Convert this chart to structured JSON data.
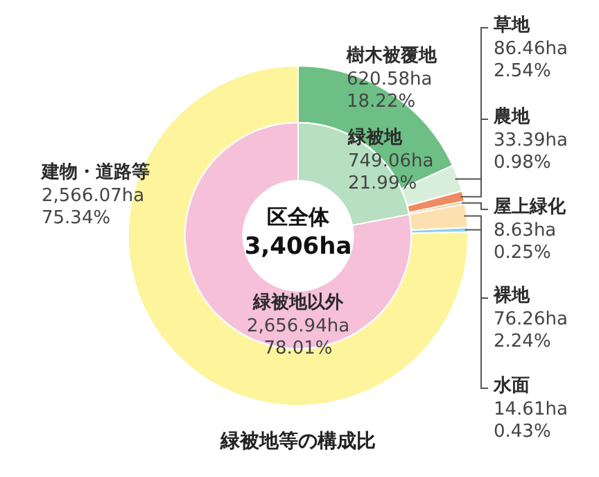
{
  "chart_data": [
    {
      "type": "donut",
      "title": "緑被地等の構成比",
      "categories": [
        "樹木被覆地",
        "草地",
        "農地",
        "屋上緑化",
        "裸地",
        "水面",
        "建物・道路等"
      ],
      "values": [
        620.58,
        86.46,
        33.39,
        8.63,
        76.26,
        14.61,
        2566.07
      ],
      "colors": [
        "#6dbf85",
        "#d7eedb",
        "#ef8b63",
        "#f6b26b",
        "#fde0b0",
        "#8fd0ea",
        "#fdf49c"
      ],
      "value_labels": [
        "620.58ha\n18.22%",
        "86.46ha\n2.54%",
        "33.39ha\n0.98%",
        "8.63ha\n0.25%",
        "76.26ha\n2.24%",
        "14.61ha\n0.43%",
        "2,566.07ha\n75.34%"
      ]
    },
    {
      "type": "donut",
      "annotations": [
        "区全体",
        "3,406ha"
      ],
      "categories": [
        "緑被地",
        "緑被地以外"
      ],
      "values": [
        749.06,
        2656.94
      ],
      "colors": [
        "#b6e0c1",
        "#f5c0d8"
      ],
      "value_labels": [
        "749.06ha\n21.99%",
        "2,656.94ha\n78.01%"
      ]
    }
  ]
}
